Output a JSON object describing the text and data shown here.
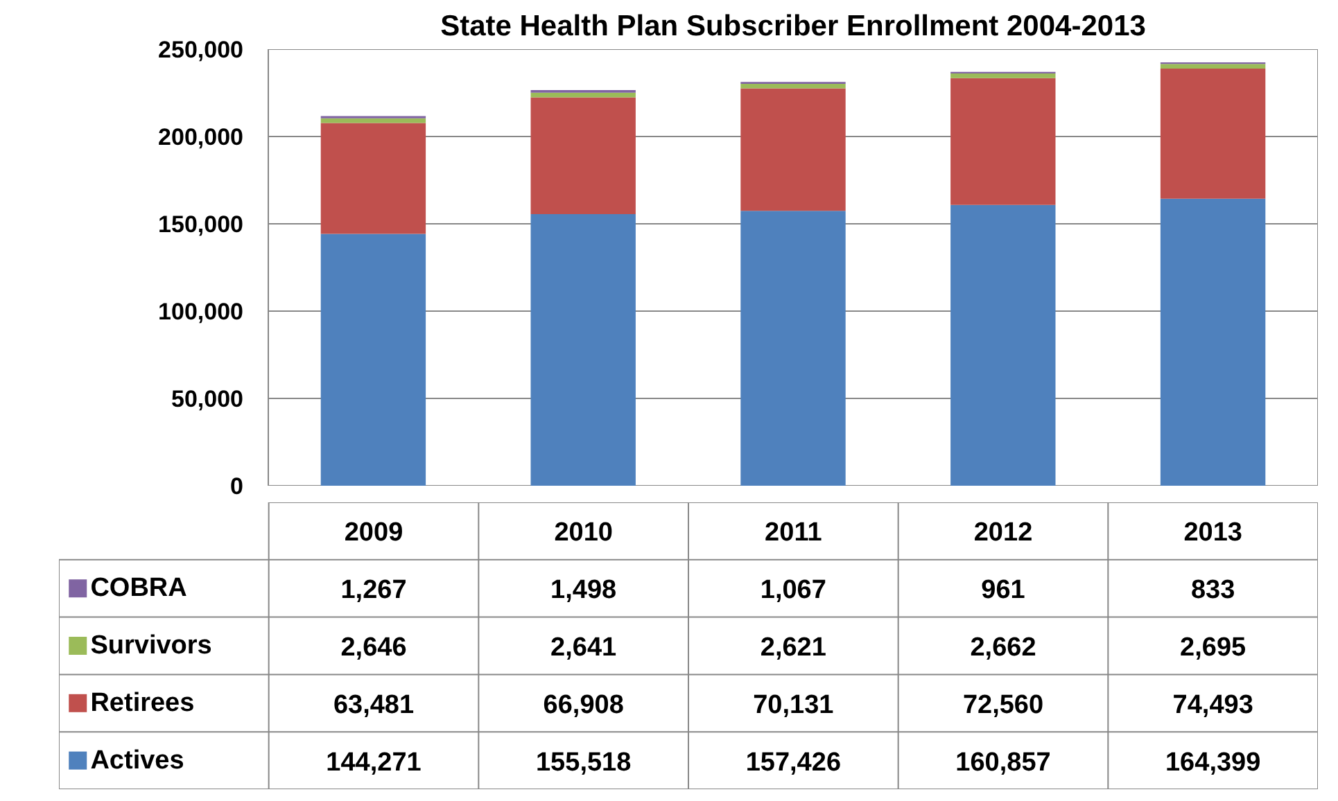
{
  "chart_data": {
    "type": "bar",
    "title": "State Health Plan Subscriber Enrollment 2004-2013",
    "categories": [
      "2009",
      "2010",
      "2011",
      "2012",
      "2013"
    ],
    "stacked": true,
    "grid": "y",
    "legend": "bottom left",
    "ylim": [
      0,
      250000
    ],
    "yticks": [
      0,
      {
        "value": 50000,
        "label": "50,000"
      },
      {
        "value": 100000,
        "label": "100,000"
      },
      {
        "value": 150000,
        "label": "150,000"
      },
      {
        "value": 200000,
        "label": "200,000"
      },
      {
        "value": 250000,
        "label": "250,000"
      }
    ],
    "series": [
      {
        "name": "Actives",
        "color": "#4f81bd",
        "values": [
          144271,
          155518,
          157426,
          160857,
          164399
        ],
        "value_labels": [
          "144,271",
          "155,518",
          "157,426",
          "160,857",
          "164,399"
        ]
      },
      {
        "name": "Retirees",
        "color": "#c0504d",
        "values": [
          63481,
          66908,
          70131,
          72560,
          74493
        ],
        "value_labels": [
          "63,481",
          "66,908",
          "70,131",
          "72,560",
          "74,493"
        ]
      },
      {
        "name": "Survivors",
        "color": "#9bbb59",
        "values": [
          2646,
          2641,
          2621,
          2662,
          2695
        ],
        "value_labels": [
          "2,646",
          "2,641",
          "2,621",
          "2,662",
          "2,695"
        ]
      },
      {
        "name": "COBRA",
        "color": "#8064a2",
        "values": [
          1267,
          1498,
          1067,
          961,
          833
        ],
        "value_labels": [
          "1,267",
          "1,498",
          "1,067",
          "961",
          "833"
        ]
      }
    ]
  }
}
